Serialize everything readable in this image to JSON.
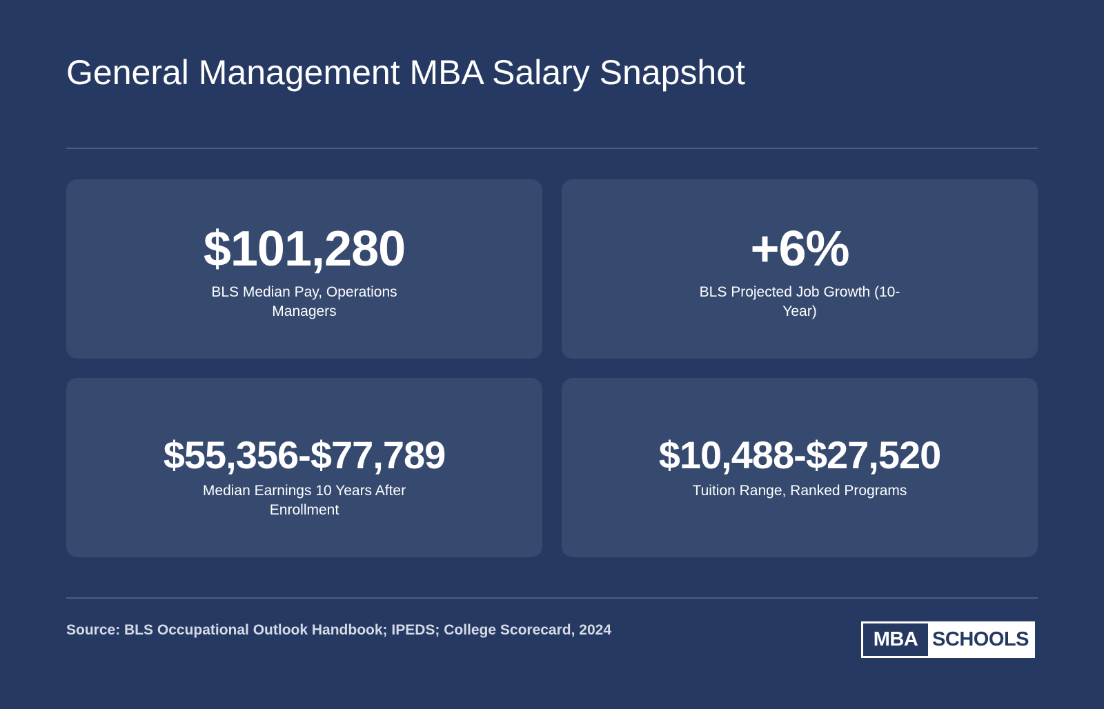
{
  "title": "General Management MBA Salary Snapshot",
  "stats": [
    {
      "value": "$101,280",
      "label": "BLS Median Pay, Operations Managers"
    },
    {
      "value": "+6%",
      "label": "BLS Projected Job Growth (10-Year)"
    },
    {
      "value": "$55,356-$77,789",
      "label": "Median Earnings 10 Years After Enrollment"
    },
    {
      "value": "$10,488-$27,520",
      "label": "Tuition Range, Ranked Programs"
    }
  ],
  "source": "Source: BLS Occupational Outlook Handbook; IPEDS; College Scorecard, 2024",
  "logo": {
    "part_a": "MBA",
    "part_b": "SCHOOLS",
    "colors": {
      "primary": "#253962",
      "background": "#ffffff"
    }
  },
  "colors": {
    "background": "#253962",
    "card": "#36496f",
    "divider": "#4a5d84",
    "text": "#ffffff",
    "source_text": "#d6dbe6"
  }
}
